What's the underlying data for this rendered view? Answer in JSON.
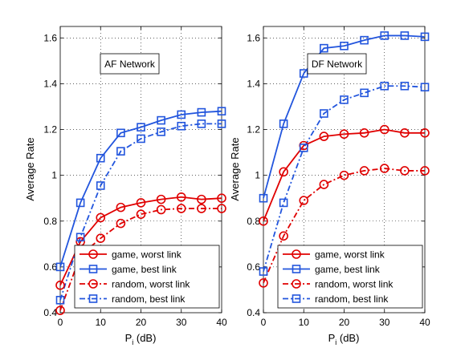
{
  "chart_data": [
    {
      "type": "line",
      "annotation": "AF Network",
      "xlabel": "P",
      "xlabel_sub": "i",
      "xlabel_unit": " (dB)",
      "ylabel": "",
      "xlim": [
        0,
        40
      ],
      "ylim": [
        0.4,
        1.65
      ],
      "xticks": [
        "0",
        "10",
        "20",
        "30",
        "40"
      ],
      "yticks": [
        "0.4",
        "0.6",
        "0.8",
        "1",
        "1.2",
        "1.4",
        "1.6"
      ],
      "grid": true,
      "legend_position": "bottom-right",
      "x": [
        0,
        5,
        10,
        15,
        20,
        25,
        30,
        35,
        40
      ],
      "series": [
        {
          "name": "game, worst link",
          "color": "#e00000",
          "dash": "solid",
          "marker": "circle",
          "values": [
            0.52,
            0.71,
            0.815,
            0.86,
            0.88,
            0.895,
            0.905,
            0.895,
            0.9
          ]
        },
        {
          "name": "game, best link",
          "color": "#2255dd",
          "dash": "solid",
          "marker": "square",
          "values": [
            0.6,
            0.88,
            1.075,
            1.185,
            1.21,
            1.24,
            1.265,
            1.275,
            1.28
          ]
        },
        {
          "name": "random, worst link",
          "color": "#e00000",
          "dash": "dashdot",
          "marker": "circle",
          "values": [
            0.41,
            0.65,
            0.725,
            0.79,
            0.83,
            0.85,
            0.855,
            0.855,
            0.855
          ]
        },
        {
          "name": "random, best link",
          "color": "#2255dd",
          "dash": "dashdot",
          "marker": "square",
          "values": [
            0.455,
            0.73,
            0.955,
            1.105,
            1.16,
            1.19,
            1.215,
            1.225,
            1.225
          ]
        }
      ]
    },
    {
      "type": "line",
      "annotation": "DF Network",
      "xlabel": "P",
      "xlabel_sub": "i",
      "xlabel_unit": " (dB)",
      "ylabel": "Average Rate",
      "xlim": [
        0,
        40
      ],
      "ylim": [
        0.4,
        1.65
      ],
      "xticks": [
        "0",
        "10",
        "20",
        "30",
        "40"
      ],
      "yticks": [
        "0.4",
        "0.6",
        "0.8",
        "1",
        "1.2",
        "1.4",
        "1.6"
      ],
      "grid": true,
      "legend_position": "bottom-right",
      "x": [
        0,
        5,
        10,
        15,
        20,
        25,
        30,
        35,
        40
      ],
      "series": [
        {
          "name": "game, worst link",
          "color": "#e00000",
          "dash": "solid",
          "marker": "circle",
          "values": [
            0.8,
            1.015,
            1.13,
            1.17,
            1.18,
            1.185,
            1.2,
            1.185,
            1.185
          ]
        },
        {
          "name": "game, best link",
          "color": "#2255dd",
          "dash": "solid",
          "marker": "square",
          "values": [
            0.9,
            1.225,
            1.445,
            1.555,
            1.565,
            1.59,
            1.61,
            1.61,
            1.605
          ]
        },
        {
          "name": "random, worst link",
          "color": "#e00000",
          "dash": "dashdot",
          "marker": "circle",
          "values": [
            0.53,
            0.735,
            0.89,
            0.96,
            1.0,
            1.02,
            1.03,
            1.02,
            1.02
          ]
        },
        {
          "name": "random, best link",
          "color": "#2255dd",
          "dash": "dashdot",
          "marker": "square",
          "values": [
            0.58,
            0.88,
            1.12,
            1.27,
            1.33,
            1.36,
            1.39,
            1.39,
            1.385
          ]
        }
      ]
    }
  ],
  "left_panel_ylabel": "Average Rate"
}
